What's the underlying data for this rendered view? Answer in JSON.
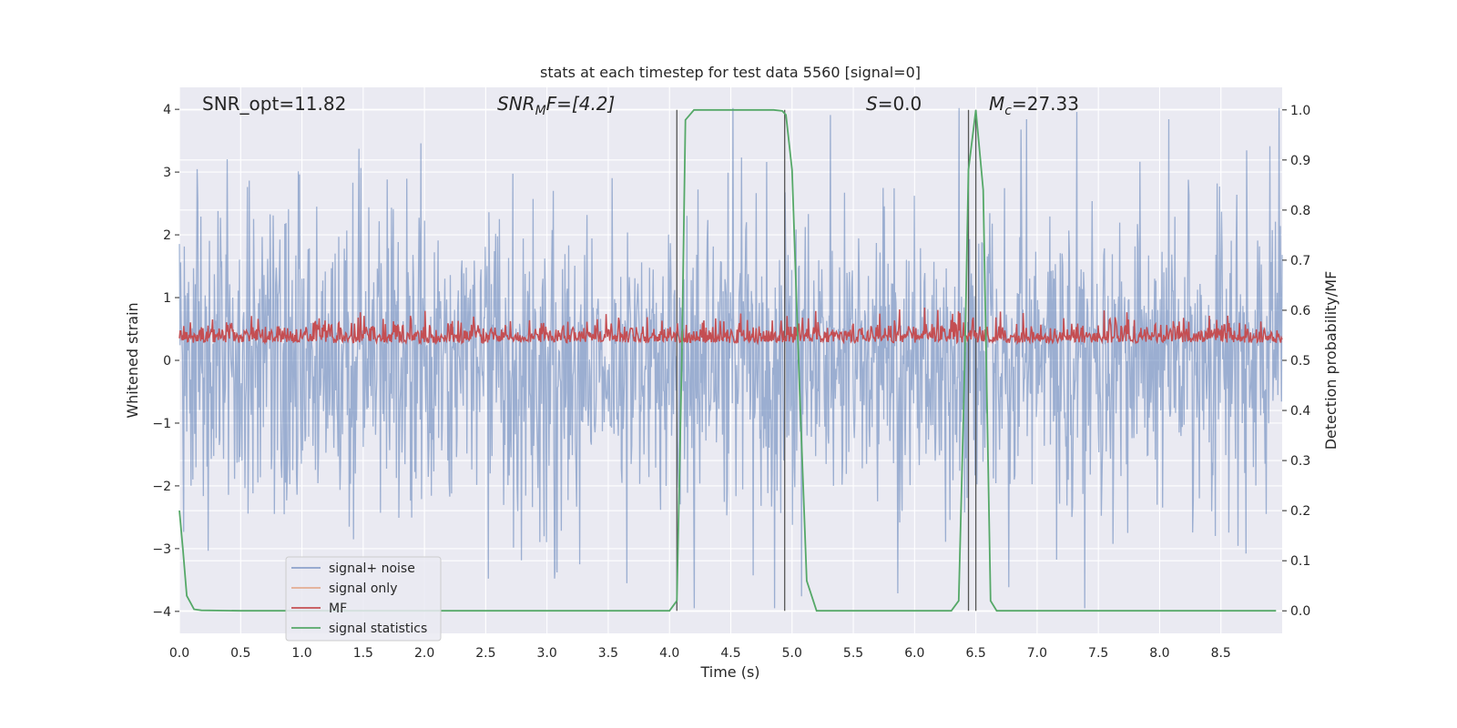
{
  "chart_data": {
    "type": "line",
    "title": "stats at each timestep for test data 5560 [signal=0]",
    "xlabel": "Time (s)",
    "ylabel": "Whitened strain",
    "y2label": "Detection probability/MF",
    "xlim": [
      0,
      9.0
    ],
    "ylim": [
      -4.35,
      4.35
    ],
    "y2lim": [
      -0.045,
      1.045
    ],
    "xticks": [
      0.0,
      0.5,
      1.0,
      1.5,
      2.0,
      2.5,
      3.0,
      3.5,
      4.0,
      4.5,
      5.0,
      5.5,
      6.0,
      6.5,
      7.0,
      7.5,
      8.0,
      8.5
    ],
    "xtick_labels": [
      "0.0",
      "0.5",
      "1.0",
      "1.5",
      "2.0",
      "2.5",
      "3.0",
      "3.5",
      "4.0",
      "4.5",
      "5.0",
      "5.5",
      "6.0",
      "6.5",
      "7.0",
      "7.5",
      "8.0",
      "8.5"
    ],
    "yticks": [
      -4,
      -3,
      -2,
      -1,
      0,
      1,
      2,
      3,
      4
    ],
    "ytick_labels": [
      "−4",
      "−3",
      "−2",
      "−1",
      "0",
      "1",
      "2",
      "3",
      "4"
    ],
    "y2ticks": [
      0.0,
      0.1,
      0.2,
      0.3,
      0.4,
      0.5,
      0.6,
      0.7,
      0.8,
      0.9,
      1.0
    ],
    "y2tick_labels": [
      "0.0",
      "0.1",
      "0.2",
      "0.3",
      "0.4",
      "0.5",
      "0.6",
      "0.7",
      "0.8",
      "0.9",
      "1.0"
    ],
    "grid": true,
    "legend_position": "lower-left",
    "annotations": {
      "snr_opt": "SNR_opt=11.82",
      "snr_mf_base": "SNR",
      "snr_mf_sub": "M",
      "snr_mf_rest": "F=[4.2]",
      "s_italic": "S",
      "s_rest": "=0.0",
      "mc_base": "M",
      "mc_sub": "c",
      "mc_rest": "=27.33"
    },
    "series": [
      {
        "name": "signal+ noise",
        "color": "#4c72b0",
        "axis": "left",
        "style": "noisy-strain, amplitude about ±2.5 with spikes to ±4"
      },
      {
        "name": "signal only",
        "color": "#dd8452",
        "axis": "left",
        "values": []
      },
      {
        "name": "MF",
        "color": "#c44e52",
        "axis": "right",
        "style": "noisy, range 0.50–0.62"
      },
      {
        "name": "signal statistics",
        "color": "#55a868",
        "axis": "right",
        "x": [
          0.0,
          0.03,
          0.06,
          0.12,
          0.18,
          0.5,
          1.0,
          2.0,
          3.0,
          3.95,
          4.0,
          4.06,
          4.1,
          4.13,
          4.2,
          4.5,
          4.85,
          4.92,
          4.95,
          5.0,
          5.06,
          5.12,
          5.2,
          5.5,
          6.0,
          6.3,
          6.36,
          6.41,
          6.44,
          6.5,
          6.56,
          6.62,
          6.67,
          7.0,
          8.0,
          8.95
        ],
        "y": [
          0.2,
          0.12,
          0.03,
          0.003,
          0.001,
          0.0,
          0.0,
          0.0,
          0.0,
          0.0,
          0.0,
          0.02,
          0.5,
          0.98,
          1.0,
          1.0,
          1.0,
          0.998,
          0.99,
          0.88,
          0.45,
          0.06,
          0.0,
          0.0,
          0.0,
          0.0,
          0.02,
          0.5,
          0.88,
          1.0,
          0.84,
          0.02,
          0.0,
          0.0,
          0.0,
          0.0
        ]
      }
    ],
    "vertical_markers": [
      4.06,
      4.94,
      6.44,
      6.5
    ]
  }
}
